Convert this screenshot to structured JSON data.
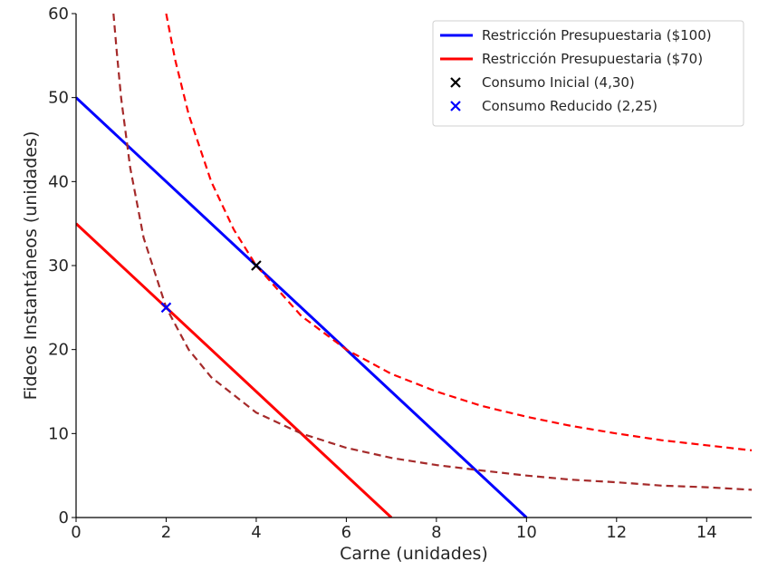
{
  "chart_data": {
    "type": "line",
    "title": "",
    "xlabel": "Carne (unidades)",
    "ylabel": "Fideos Instantáneos (unidades)",
    "xlim": [
      0,
      15
    ],
    "ylim": [
      0,
      60
    ],
    "xticks": [
      0,
      2,
      4,
      6,
      8,
      10,
      12,
      14
    ],
    "yticks": [
      0,
      10,
      20,
      30,
      40,
      50,
      60
    ],
    "grid": false,
    "legend_position": "top-right",
    "series": [
      {
        "name": "Restricción Presupuestaria ($100)",
        "kind": "line",
        "style": "solid",
        "color": "#0000ff",
        "x": [
          0,
          10
        ],
        "y": [
          50,
          0
        ]
      },
      {
        "name": "Restricción Presupuestaria ($70)",
        "kind": "line",
        "style": "solid",
        "color": "#ff0000",
        "x": [
          0,
          7
        ],
        "y": [
          35,
          0
        ]
      },
      {
        "name": "",
        "kind": "curve",
        "style": "dashed",
        "color": "#ff0000",
        "x": [
          2,
          2.2,
          2.5,
          3,
          3.5,
          4,
          5,
          6,
          7,
          8,
          9,
          10,
          11,
          12,
          13,
          14,
          15
        ],
        "y": [
          60,
          54.5,
          48,
          40,
          34.3,
          30,
          24,
          20,
          17.1,
          15,
          13.3,
          12,
          10.9,
          10,
          9.2,
          8.6,
          8
        ]
      },
      {
        "name": "",
        "kind": "curve",
        "style": "dashed",
        "color": "#a52a2a",
        "x": [
          0.83,
          0.9,
          1,
          1.2,
          1.5,
          2,
          2.5,
          3,
          4,
          5,
          6,
          7,
          8,
          9,
          10,
          11,
          12,
          13,
          14,
          15
        ],
        "y": [
          60,
          55.6,
          50,
          41.7,
          33.3,
          25,
          20,
          16.7,
          12.5,
          10,
          8.3,
          7.1,
          6.25,
          5.6,
          5,
          4.5,
          4.2,
          3.8,
          3.6,
          3.3
        ]
      },
      {
        "name": "Consumo Inicial (4,30)",
        "kind": "marker",
        "marker": "x",
        "color": "#000000",
        "x": [
          4
        ],
        "y": [
          30
        ]
      },
      {
        "name": "Consumo Reducido (2,25)",
        "kind": "marker",
        "marker": "x",
        "color": "#0000ff",
        "x": [
          2
        ],
        "y": [
          25
        ]
      }
    ]
  }
}
